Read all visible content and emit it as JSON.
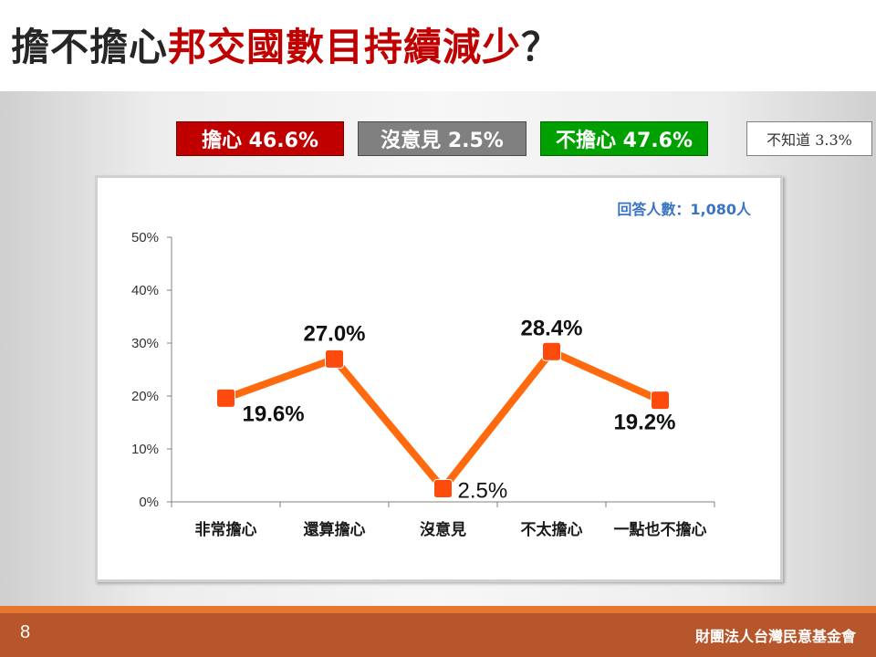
{
  "slide": {
    "title_part1": "擔不擔心",
    "title_part2": "邦交國數目持續減少",
    "title_part3": "？",
    "page_number": "8",
    "organization": "財團法人台灣民意基金會"
  },
  "summary": {
    "worry": "擔心 46.6%",
    "no_opinion": "沒意見 2.5%",
    "not_worry": "不擔心 47.6%",
    "dont_know": "不知道 3.3%",
    "colors": {
      "worry": "#c00000",
      "no_opinion": "#808080",
      "not_worry": "#00a000"
    }
  },
  "chart_data": {
    "type": "line",
    "categories": [
      "非常擔心",
      "還算擔心",
      "沒意見",
      "不太擔心",
      "一點也不擔心"
    ],
    "values": [
      19.6,
      27.0,
      2.5,
      28.4,
      19.2
    ],
    "data_labels": [
      "19.6%",
      "27.0%",
      "2.5%",
      "28.4%",
      "19.2%"
    ],
    "y_ticks": [
      "0%",
      "10%",
      "20%",
      "30%",
      "40%",
      "50%"
    ],
    "ylim": [
      0,
      50
    ],
    "grid": false,
    "annotation": "回答人數：1,080人",
    "line_color": "#ff6a0e",
    "marker_color": "#ff4a0e"
  }
}
